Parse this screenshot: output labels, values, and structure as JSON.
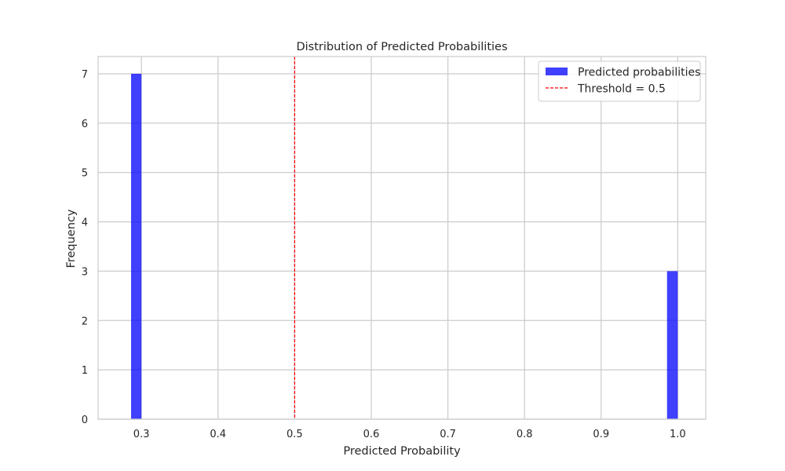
{
  "chart_data": {
    "type": "bar",
    "title": "Distribution of Predicted Probabilities",
    "xlabel": "Predicted Probability",
    "ylabel": "Frequency",
    "xlim": [
      0.2435,
      1.0365
    ],
    "ylim": [
      0,
      7.35
    ],
    "xticks": [
      0.3,
      0.4,
      0.5,
      0.6,
      0.7,
      0.8,
      0.9,
      1.0
    ],
    "xtick_labels": [
      "0.3",
      "0.4",
      "0.5",
      "0.6",
      "0.7",
      "0.8",
      "0.9",
      "1.0"
    ],
    "yticks": [
      0,
      1,
      2,
      3,
      4,
      5,
      6,
      7
    ],
    "ytick_labels": [
      "0",
      "1",
      "2",
      "3",
      "4",
      "5",
      "6",
      "7"
    ],
    "grid": true,
    "legend_position": "top-right",
    "series": [
      {
        "name": "Predicted probabilities",
        "kind": "histogram",
        "color": "#0000ff",
        "opacity": 0.75,
        "bins": [
          {
            "x0": 0.2865,
            "x1": 0.3,
            "count": 7
          },
          {
            "x0": 0.986,
            "x1": 1.0,
            "count": 3
          }
        ]
      },
      {
        "name": "Threshold = 0.5",
        "kind": "vline",
        "x": 0.5,
        "color": "#ff0000",
        "linestyle": "dashed"
      }
    ]
  }
}
